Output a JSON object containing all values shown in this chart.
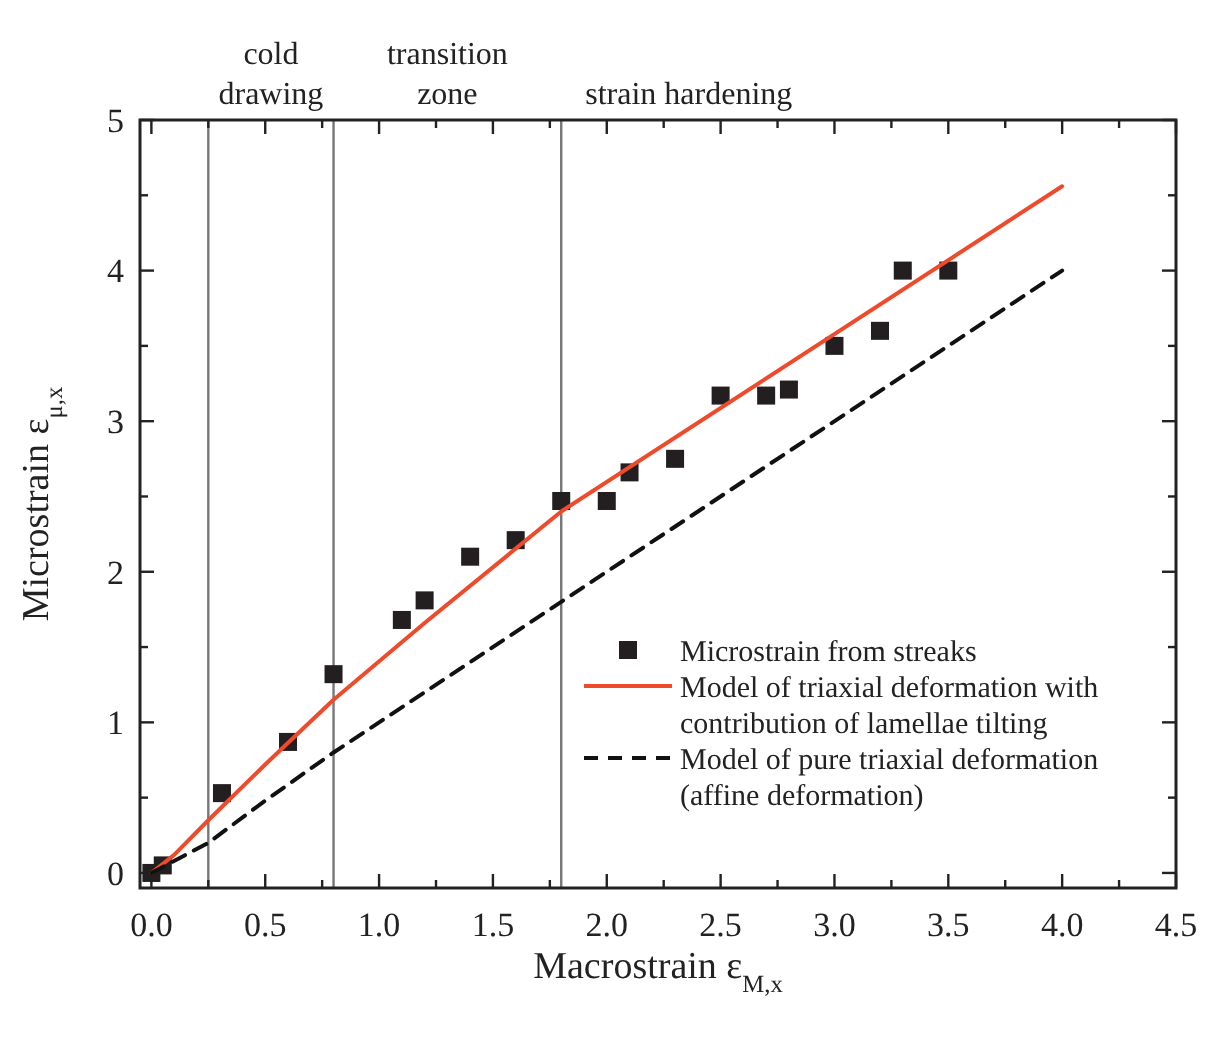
{
  "chart_data": {
    "type": "scatter",
    "xlabel": "Macrostrain ε$_{M,x}$",
    "ylabel": "Microstrain ε$_{μ,x}$",
    "xlim": [
      -0.05,
      4.5
    ],
    "ylim": [
      -0.1,
      5
    ],
    "xticks": [
      {
        "value": 0,
        "label": "0.0"
      },
      {
        "value": 0.25,
        "label": null
      },
      {
        "value": 0.5,
        "label": "0.5"
      },
      {
        "value": 0.75,
        "label": null
      },
      {
        "value": 1,
        "label": "1.0"
      },
      {
        "value": 1.25,
        "label": null
      },
      {
        "value": 1.5,
        "label": "1.5"
      },
      {
        "value": 1.75,
        "label": null
      },
      {
        "value": 2,
        "label": "2.0"
      },
      {
        "value": 2.25,
        "label": null
      },
      {
        "value": 2.5,
        "label": "2.5"
      },
      {
        "value": 2.75,
        "label": null
      },
      {
        "value": 3,
        "label": "3.0"
      },
      {
        "value": 3.25,
        "label": null
      },
      {
        "value": 3.5,
        "label": "3.5"
      },
      {
        "value": 3.75,
        "label": null
      },
      {
        "value": 4,
        "label": "4.0"
      },
      {
        "value": 4.25,
        "label": null
      },
      {
        "value": 4.5,
        "label": "4.5"
      }
    ],
    "yticks": [
      0,
      {
        "value": 0.5,
        "label": null
      },
      1,
      {
        "value": 1.5,
        "label": null
      },
      2,
      {
        "value": 2.5,
        "label": null
      },
      3,
      {
        "value": 3.5,
        "label": null
      },
      4,
      {
        "value": 4.5,
        "label": null
      },
      5
    ],
    "grid": false,
    "legend": "bottom right",
    "ref_lines": [
      {
        "axis": "x",
        "value": 0.25,
        "label": "cold drawing",
        "color": "#777777"
      },
      {
        "axis": "x",
        "value": 0.8,
        "label": "transition zone",
        "color": "#777777"
      },
      {
        "axis": "x",
        "value": 1.8,
        "label": "strain hardening",
        "color": "#777777"
      }
    ],
    "series": [
      {
        "name": "Microstrain from streaks",
        "type": "scatter",
        "marker": "square",
        "color": "#231f20",
        "x": [
          0,
          0.05,
          0.31,
          0.6,
          0.8,
          1.1,
          1.2,
          1.4,
          1.6,
          1.8,
          2.0,
          2.1,
          2.3,
          2.5,
          2.7,
          2.8,
          3.0,
          3.2,
          3.3,
          3.5
        ],
        "values": [
          0,
          0.05,
          0.53,
          0.87,
          1.32,
          1.68,
          1.81,
          2.1,
          2.21,
          2.47,
          2.47,
          2.66,
          2.75,
          3.17,
          3.17,
          3.21,
          3.5,
          3.6,
          4.0,
          4.0
        ]
      },
      {
        "name": "Model of triaxial deformation with contribution of lamellae tilting",
        "type": "line",
        "line_style": "solid",
        "marker": "none",
        "color": "#ee4a2c",
        "x": [
          0,
          0.1,
          0.25,
          0.5,
          0.8,
          1.2,
          1.8,
          4.0
        ],
        "values": [
          0,
          0.12,
          0.35,
          0.72,
          1.15,
          1.66,
          2.4,
          4.56
        ]
      },
      {
        "name": "Model of pure triaxial deformation (affine deformation)",
        "type": "line",
        "line_style": "dashed",
        "marker": "none",
        "color": "#111111",
        "x": [
          0,
          0.25,
          0.5,
          0.8,
          1.8,
          4.0
        ],
        "values": [
          0,
          0.2,
          0.48,
          0.8,
          1.8,
          4.0
        ]
      }
    ]
  }
}
